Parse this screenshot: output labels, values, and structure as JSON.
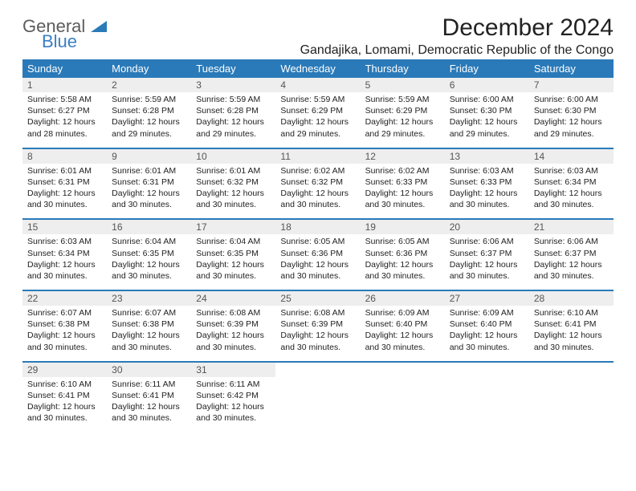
{
  "logo": {
    "general": "General",
    "blue": "Blue"
  },
  "title": "December 2024",
  "subtitle": "Gandajika, Lomami, Democratic Republic of the Congo",
  "colors": {
    "header_bg": "#2a7ab9",
    "header_text": "#ffffff",
    "daynum_bg": "#eeeeee",
    "daynum_text": "#555555",
    "brand_blue": "#3a7fc4",
    "brand_gray": "#5c5c5c"
  },
  "day_headers": [
    "Sunday",
    "Monday",
    "Tuesday",
    "Wednesday",
    "Thursday",
    "Friday",
    "Saturday"
  ],
  "weeks": [
    {
      "nums": [
        "1",
        "2",
        "3",
        "4",
        "5",
        "6",
        "7"
      ],
      "details": [
        "Sunrise: 5:58 AM\nSunset: 6:27 PM\nDaylight: 12 hours and 28 minutes.",
        "Sunrise: 5:59 AM\nSunset: 6:28 PM\nDaylight: 12 hours and 29 minutes.",
        "Sunrise: 5:59 AM\nSunset: 6:28 PM\nDaylight: 12 hours and 29 minutes.",
        "Sunrise: 5:59 AM\nSunset: 6:29 PM\nDaylight: 12 hours and 29 minutes.",
        "Sunrise: 5:59 AM\nSunset: 6:29 PM\nDaylight: 12 hours and 29 minutes.",
        "Sunrise: 6:00 AM\nSunset: 6:30 PM\nDaylight: 12 hours and 29 minutes.",
        "Sunrise: 6:00 AM\nSunset: 6:30 PM\nDaylight: 12 hours and 29 minutes."
      ]
    },
    {
      "nums": [
        "8",
        "9",
        "10",
        "11",
        "12",
        "13",
        "14"
      ],
      "details": [
        "Sunrise: 6:01 AM\nSunset: 6:31 PM\nDaylight: 12 hours and 30 minutes.",
        "Sunrise: 6:01 AM\nSunset: 6:31 PM\nDaylight: 12 hours and 30 minutes.",
        "Sunrise: 6:01 AM\nSunset: 6:32 PM\nDaylight: 12 hours and 30 minutes.",
        "Sunrise: 6:02 AM\nSunset: 6:32 PM\nDaylight: 12 hours and 30 minutes.",
        "Sunrise: 6:02 AM\nSunset: 6:33 PM\nDaylight: 12 hours and 30 minutes.",
        "Sunrise: 6:03 AM\nSunset: 6:33 PM\nDaylight: 12 hours and 30 minutes.",
        "Sunrise: 6:03 AM\nSunset: 6:34 PM\nDaylight: 12 hours and 30 minutes."
      ]
    },
    {
      "nums": [
        "15",
        "16",
        "17",
        "18",
        "19",
        "20",
        "21"
      ],
      "details": [
        "Sunrise: 6:03 AM\nSunset: 6:34 PM\nDaylight: 12 hours and 30 minutes.",
        "Sunrise: 6:04 AM\nSunset: 6:35 PM\nDaylight: 12 hours and 30 minutes.",
        "Sunrise: 6:04 AM\nSunset: 6:35 PM\nDaylight: 12 hours and 30 minutes.",
        "Sunrise: 6:05 AM\nSunset: 6:36 PM\nDaylight: 12 hours and 30 minutes.",
        "Sunrise: 6:05 AM\nSunset: 6:36 PM\nDaylight: 12 hours and 30 minutes.",
        "Sunrise: 6:06 AM\nSunset: 6:37 PM\nDaylight: 12 hours and 30 minutes.",
        "Sunrise: 6:06 AM\nSunset: 6:37 PM\nDaylight: 12 hours and 30 minutes."
      ]
    },
    {
      "nums": [
        "22",
        "23",
        "24",
        "25",
        "26",
        "27",
        "28"
      ],
      "details": [
        "Sunrise: 6:07 AM\nSunset: 6:38 PM\nDaylight: 12 hours and 30 minutes.",
        "Sunrise: 6:07 AM\nSunset: 6:38 PM\nDaylight: 12 hours and 30 minutes.",
        "Sunrise: 6:08 AM\nSunset: 6:39 PM\nDaylight: 12 hours and 30 minutes.",
        "Sunrise: 6:08 AM\nSunset: 6:39 PM\nDaylight: 12 hours and 30 minutes.",
        "Sunrise: 6:09 AM\nSunset: 6:40 PM\nDaylight: 12 hours and 30 minutes.",
        "Sunrise: 6:09 AM\nSunset: 6:40 PM\nDaylight: 12 hours and 30 minutes.",
        "Sunrise: 6:10 AM\nSunset: 6:41 PM\nDaylight: 12 hours and 30 minutes."
      ]
    },
    {
      "nums": [
        "29",
        "30",
        "31",
        "",
        "",
        "",
        ""
      ],
      "details": [
        "Sunrise: 6:10 AM\nSunset: 6:41 PM\nDaylight: 12 hours and 30 minutes.",
        "Sunrise: 6:11 AM\nSunset: 6:41 PM\nDaylight: 12 hours and 30 minutes.",
        "Sunrise: 6:11 AM\nSunset: 6:42 PM\nDaylight: 12 hours and 30 minutes.",
        "",
        "",
        "",
        ""
      ]
    }
  ]
}
